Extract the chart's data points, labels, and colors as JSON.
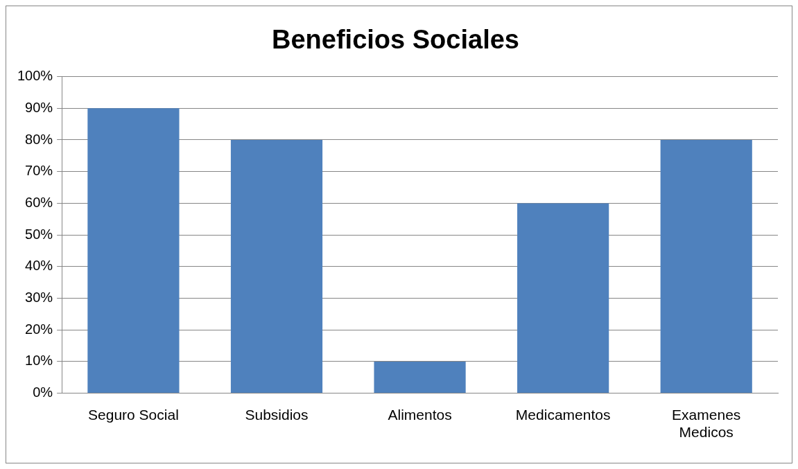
{
  "chart_data": {
    "type": "bar",
    "title": "Beneficios Sociales",
    "categories": [
      "Seguro Social",
      "Subsidios",
      "Alimentos",
      "Medicamentos",
      "Examenes Medicos"
    ],
    "values": [
      90,
      80,
      10,
      60,
      80
    ],
    "color": "#4f81bd",
    "ylim": [
      0,
      100
    ],
    "yticks": [
      {
        "value": 0,
        "label": "0%"
      },
      {
        "value": 10,
        "label": "10%"
      },
      {
        "value": 20,
        "label": "20%"
      },
      {
        "value": 30,
        "label": "30%"
      },
      {
        "value": 40,
        "label": "40%"
      },
      {
        "value": 50,
        "label": "50%"
      },
      {
        "value": 60,
        "label": "60%"
      },
      {
        "value": 70,
        "label": "70%"
      },
      {
        "value": 80,
        "label": "80%"
      },
      {
        "value": 90,
        "label": "90%"
      },
      {
        "value": 100,
        "label": "100%"
      }
    ],
    "grid": "y",
    "legend": false
  }
}
